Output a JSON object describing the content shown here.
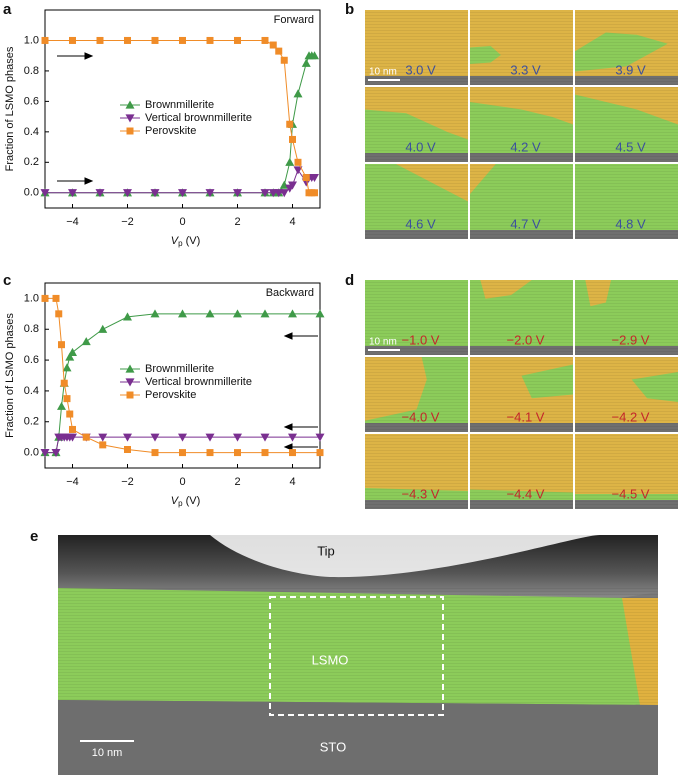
{
  "panel_labels": [
    "a",
    "b",
    "c",
    "d",
    "e"
  ],
  "chart_data": [
    {
      "type": "line",
      "annotation": "Forward",
      "ylabel": "Fraction of LSMO phases",
      "xlabel_symbol": "V",
      "xlabel_subscript": "p",
      "xlabel_unit": "(V)",
      "x": [
        -5,
        -4,
        -3,
        -2,
        -1,
        0,
        1,
        2,
        3,
        3.3,
        3.5,
        3.7,
        3.9,
        4.0,
        4.2,
        4.5,
        4.6,
        4.7,
        4.8
      ],
      "series": [
        {
          "name": "Brownmillerite",
          "color": "#3f9a48",
          "marker": "triangle-up",
          "values": [
            0,
            0,
            0,
            0,
            0,
            0,
            0,
            0,
            0,
            0,
            0,
            0.05,
            0.2,
            0.45,
            0.65,
            0.85,
            0.9,
            0.9,
            0.9
          ]
        },
        {
          "name": "Vertical brownmillerite",
          "color": "#7a2f90",
          "marker": "triangle-down",
          "values": [
            0,
            0,
            0,
            0,
            0,
            0,
            0,
            0,
            0,
            0,
            0,
            0,
            0.03,
            0.05,
            0.15,
            0.07,
            0.1,
            0.1,
            0.1
          ]
        },
        {
          "name": "Perovskite",
          "color": "#f08c28",
          "marker": "square",
          "values": [
            1,
            1,
            1,
            1,
            1,
            1,
            1,
            1,
            1,
            0.97,
            0.93,
            0.87,
            0.45,
            0.35,
            0.2,
            0.1,
            0,
            0,
            0
          ]
        }
      ],
      "xlim": [
        -5,
        5
      ],
      "xticks": [
        {
          "value": -4,
          "label": "−4"
        },
        {
          "value": -2,
          "label": "−2"
        },
        0,
        2,
        4
      ],
      "ylim": [
        -0.1,
        1.2
      ],
      "yticks": [
        {
          "value": 0,
          "label": "0.0"
        },
        0.2,
        0.4,
        0.6,
        0.8,
        {
          "value": 1,
          "label": "1.0"
        }
      ]
    },
    {
      "type": "line",
      "annotation": "Backward",
      "ylabel": "Fraction of LSMO phases",
      "xlabel_symbol": "V",
      "xlabel_subscript": "p",
      "xlabel_unit": "(V)",
      "x": [
        5,
        4,
        3,
        2,
        1,
        0,
        -1,
        -2,
        -2.9,
        -3.5,
        -4,
        -4.1,
        -4.2,
        -4.3,
        -4.4,
        -4.5,
        -4.6,
        -5
      ],
      "series": [
        {
          "name": "Brownmillerite",
          "color": "#3f9a48",
          "marker": "triangle-up",
          "values": [
            0.9,
            0.9,
            0.9,
            0.9,
            0.9,
            0.9,
            0.9,
            0.88,
            0.8,
            0.72,
            0.65,
            0.62,
            0.55,
            0.45,
            0.3,
            0.1,
            0,
            0
          ]
        },
        {
          "name": "Vertical brownmillerite",
          "color": "#7a2f90",
          "marker": "triangle-down",
          "values": [
            0.1,
            0.1,
            0.1,
            0.1,
            0.1,
            0.1,
            0.1,
            0.1,
            0.1,
            0.1,
            0.1,
            0.1,
            0.1,
            0.1,
            0.1,
            0.1,
            0,
            0
          ]
        },
        {
          "name": "Perovskite",
          "color": "#f08c28",
          "marker": "square",
          "values": [
            0,
            0,
            0,
            0,
            0,
            0,
            0,
            0.02,
            0.05,
            0.1,
            0.15,
            0.25,
            0.35,
            0.45,
            0.7,
            0.9,
            1,
            1
          ]
        }
      ],
      "xlim": [
        -5,
        5
      ],
      "xticks": [
        {
          "value": -4,
          "label": "−4"
        },
        {
          "value": -2,
          "label": "−2"
        },
        0,
        2,
        4
      ],
      "ylim": [
        -0.1,
        1.1
      ],
      "yticks": [
        {
          "value": 0,
          "label": "0.0"
        },
        0.2,
        0.4,
        0.6,
        0.8,
        {
          "value": 1,
          "label": "1.0"
        }
      ]
    }
  ],
  "panel_b": {
    "scale_bar": "10 nm",
    "labels": [
      "3.0 V",
      "3.3 V",
      "3.9 V",
      "4.0 V",
      "4.2 V",
      "4.5 V",
      "4.6 V",
      "4.7 V",
      "4.8 V"
    ]
  },
  "panel_d": {
    "scale_bar": "10 nm",
    "labels": [
      "−1.0 V",
      "−2.0 V",
      "−2.9 V",
      "−4.0 V",
      "−4.1 V",
      "−4.2 V",
      "−4.3 V",
      "−4.4 V",
      "−4.5 V"
    ]
  },
  "panel_e": {
    "tip": "Tip",
    "layer": "LSMO",
    "substrate": "STO",
    "scale_bar": "10 nm"
  }
}
